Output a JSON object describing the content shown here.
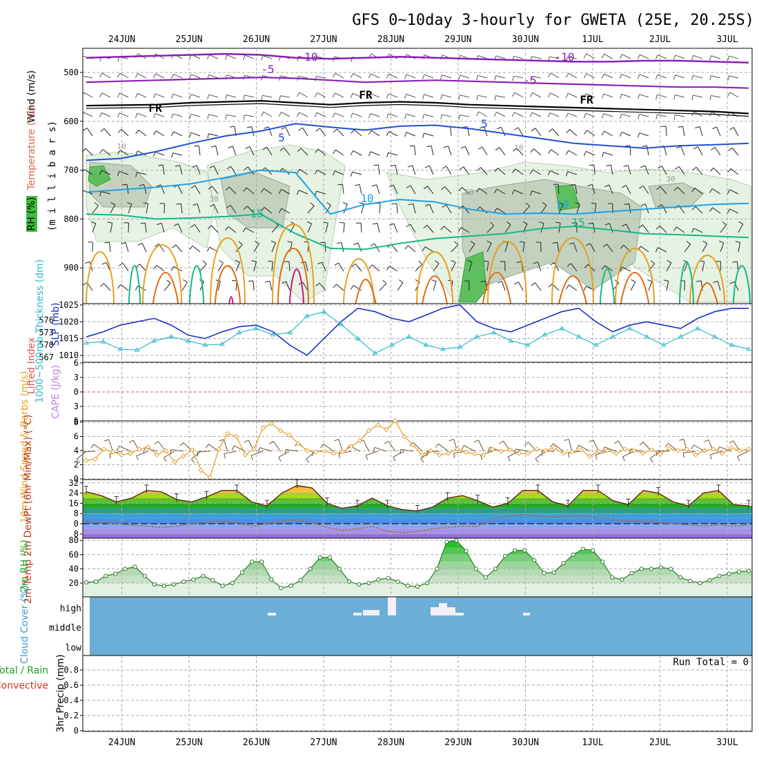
{
  "chart_data": {
    "type": "meteogram",
    "title": "GFS 0~10day 3-hourly for GWETA (25E, 20.25S)",
    "dates": [
      "24JUN",
      "25JUN",
      "26JUN",
      "27JUN",
      "28JUN",
      "29JUN",
      "30JUN",
      "1JUL",
      "2JUL",
      "3JUL"
    ],
    "upper": {
      "ylabels": [
        "Wind (m/s)",
        "Temperature (°C)",
        "RH (%)",
        "(m i l l i b a r s)"
      ],
      "pressure_ticks": [
        500,
        600,
        700,
        800,
        900
      ],
      "contour_labels": [
        "-10",
        "-5",
        "-10",
        "-5",
        "FR",
        "FR",
        "FR",
        "5",
        "5",
        "10",
        "10",
        "15",
        "15",
        "10",
        "10",
        "30",
        "30",
        "30"
      ],
      "isotherms": {
        "minus10": [
          470,
          468,
          466,
          464,
          462,
          464,
          470,
          472,
          470,
          468,
          470,
          472,
          474,
          476,
          478,
          478,
          476,
          476,
          478,
          480
        ],
        "minus5": [
          520,
          518,
          516,
          514,
          512,
          510,
          512,
          516,
          520,
          518,
          516,
          518,
          520,
          522,
          524,
          526,
          528,
          530,
          530,
          532
        ],
        "fr": [
          568,
          567,
          566,
          562,
          560,
          558,
          562,
          566,
          562,
          560,
          562,
          566,
          568,
          570,
          572,
          574,
          576,
          578,
          580,
          584
        ],
        "t5": [
          680,
          676,
          662,
          645,
          630,
          620,
          605,
          612,
          618,
          610,
          608,
          615,
          625,
          635,
          645,
          650,
          655,
          650,
          648,
          645
        ],
        "t10": [
          745,
          740,
          735,
          728,
          715,
          700,
          705,
          790,
          770,
          760,
          765,
          780,
          790,
          788,
          790,
          785,
          780,
          775,
          770,
          768
        ],
        "t15": [
          790,
          792,
          800,
          798,
          795,
          790,
          830,
          860,
          862,
          850,
          840,
          835,
          830,
          820,
          815,
          822,
          830,
          832,
          835,
          838
        ]
      }
    },
    "slp_thickness": {
      "ylabel_slp": "SLP (mb)",
      "ylabel_thk": "1000~500mb Thickness (dm)",
      "slp_ticks": [
        1010,
        1015,
        1020,
        1025
      ],
      "thk_ticks": [
        567,
        570,
        573,
        576
      ],
      "slp": [
        1015.5,
        1017,
        1019,
        1020,
        1021,
        1019,
        1016,
        1015,
        1017,
        1018.5,
        1019,
        1017,
        1013,
        1010,
        1015,
        1020,
        1024,
        1023,
        1021,
        1020,
        1022,
        1024,
        1025,
        1020,
        1018,
        1017,
        1019,
        1021,
        1023,
        1024,
        1020,
        1017,
        1019,
        1020,
        1019,
        1018,
        1021,
        1023,
        1024,
        1024
      ],
      "thk": [
        570.5,
        570.8,
        569,
        568.8,
        571,
        572,
        571,
        570,
        570.2,
        573,
        574,
        572.5,
        573,
        577,
        578,
        575,
        571.5,
        568,
        570,
        572,
        570,
        569,
        569.5,
        572,
        573,
        571,
        570,
        572.5,
        574,
        572,
        570,
        572,
        574,
        572,
        570,
        572,
        574,
        572,
        570,
        569
      ]
    },
    "lifted_cape": {
      "ylabel_li": "Lifted Index",
      "ylabel_cape": "CAPE (J/kg)",
      "li_ticks": [
        -6,
        -3,
        0,
        3,
        6
      ]
    },
    "wind10m": {
      "ylabel": "10m Wind Speed & Barbs (m/s)",
      "ticks": [
        0,
        2,
        4,
        6,
        8
      ],
      "speed": [
        2.6,
        2.8,
        4.2,
        3.8,
        3.4,
        3.6,
        4.2,
        4.5,
        3.4,
        4.0,
        2.4,
        3.2,
        4.1,
        1.2,
        0.2,
        4.2,
        6.4,
        6.0,
        3.4,
        4.2,
        7.2,
        7.8,
        6.8,
        6.2,
        5.0,
        4.0,
        3.8,
        3.9,
        3.6,
        3.8,
        4.6,
        5.4,
        6.8,
        7.6,
        7.0,
        8.2,
        6.0,
        4.8,
        3.4,
        4.0,
        3.4,
        3.6,
        4.2,
        3.8,
        3.5,
        3.4,
        4.2,
        3.9,
        4.1,
        3.6,
        3.6,
        4.2,
        4.0,
        4.4,
        3.6,
        3.8,
        4.1,
        3.2,
        3.9,
        4.0,
        3.6,
        4.2,
        4.0,
        3.6,
        4.1,
        3.5,
        4.3,
        4.0,
        4.2,
        3.4,
        4.0,
        4.2,
        3.6,
        4.4,
        4.0,
        4.2
      ]
    },
    "temp2m": {
      "ylabel": "2m Temp 2m DewPt (6hr Min/Max) (°C)",
      "ticks": [
        -8,
        0,
        8,
        16,
        24,
        32
      ],
      "temp": [
        25,
        22,
        17,
        20,
        26,
        25,
        19,
        17,
        21,
        26,
        26,
        17,
        14,
        24,
        30,
        28,
        16,
        12,
        14,
        20,
        14,
        11,
        10,
        13,
        20,
        22,
        18,
        13,
        16,
        26,
        26,
        17,
        14,
        26,
        26,
        18,
        15,
        26,
        24,
        17,
        14,
        24,
        26,
        15,
        14
      ],
      "dewpt": [
        2,
        1,
        0,
        -1,
        -2,
        -3,
        -2,
        0,
        1,
        2,
        1,
        -2,
        0,
        2,
        3,
        1,
        -3,
        -5,
        -4,
        -2,
        -6,
        -7,
        -6,
        -4,
        -3,
        -2,
        -2,
        4,
        6,
        7,
        6,
        5,
        6,
        6,
        5,
        3,
        2,
        2,
        1,
        0,
        -1,
        -2,
        -1,
        -2,
        -1
      ]
    },
    "rh2m": {
      "ylabel": "2m RH (%)",
      "ticks": [
        20,
        40,
        60,
        80
      ],
      "values": [
        21,
        22,
        30,
        33,
        40,
        43,
        30,
        18,
        16,
        18,
        22,
        25,
        30,
        24,
        16,
        20,
        35,
        50,
        50,
        25,
        13,
        16,
        24,
        40,
        56,
        56,
        40,
        22,
        18,
        20,
        25,
        27,
        22,
        16,
        15,
        20,
        40,
        78,
        80,
        65,
        40,
        28,
        40,
        58,
        66,
        66,
        52,
        34,
        35,
        48,
        60,
        68,
        66,
        50,
        28,
        25,
        34,
        40,
        40,
        42,
        40,
        28,
        23,
        20,
        24,
        30,
        33,
        36,
        37
      ]
    },
    "cloud": {
      "ylabel": "Cloud Cover (%)",
      "levels": [
        "high",
        "middle",
        "low"
      ]
    },
    "precip": {
      "ylabel_a": "Total / Rain",
      "ylabel_b": "Convective",
      "ylabel_c": "3hr Precip (mm)",
      "ticks": [
        "0",
        "0.2",
        "0.4",
        "0.6",
        "0.8"
      ],
      "run_total": "Run Total = 0"
    },
    "colors": {
      "purple": "#8a1fb5",
      "fr": "#000000",
      "blue": "#1d4fd6",
      "lightblue": "#1e9fe6",
      "teal": "#12b88a",
      "orange": "#e5a020",
      "darkorange": "#e06a10",
      "magenta": "#d01080",
      "slp": "#1a2fc8",
      "thk": "#30b8c8",
      "windline": "#e5a030",
      "cloudbg": "#6baed6"
    }
  }
}
